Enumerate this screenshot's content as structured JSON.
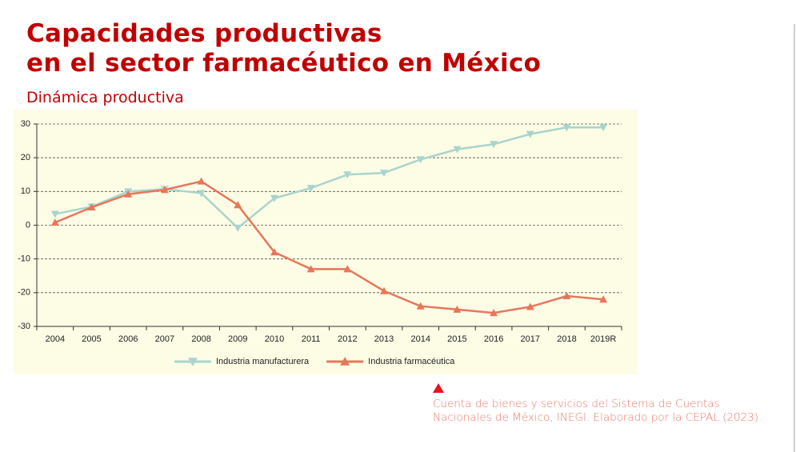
{
  "header": {
    "title": [
      "Capacidades productivas",
      "en el sector farmacéutico en México"
    ],
    "subtitle": "Dinámica productiva"
  },
  "chart_data": {
    "type": "line",
    "categories": [
      "2004",
      "2005",
      "2006",
      "2007",
      "2008",
      "2009",
      "2010",
      "2011",
      "2012",
      "2013",
      "2014",
      "2015",
      "2016",
      "2017",
      "2018",
      "2019R"
    ],
    "series": [
      {
        "name": "Industria manufacturera",
        "color": "#a9d5cd",
        "marker": "down",
        "values": [
          3.3,
          5.5,
          10,
          10.7,
          9.5,
          -0.8,
          8,
          11,
          15,
          15.5,
          19.5,
          22.5,
          24,
          27,
          29,
          29
        ]
      },
      {
        "name": "Industria farmacéutica",
        "color": "#e8765a",
        "marker": "up",
        "values": [
          0.8,
          5.3,
          9.2,
          10.5,
          13,
          6,
          -8,
          -13,
          -13,
          -19.5,
          -24,
          -25,
          -26,
          -24.2,
          -21,
          -22
        ]
      }
    ],
    "ylim": [
      -30,
      30
    ],
    "yticks": [
      -30,
      -20,
      -10,
      0,
      10,
      20,
      30
    ],
    "grid": true,
    "legend": "bottom"
  },
  "source": [
    "Cuenta de bienes y servicios del Sistema de Cuentas",
    "Nacionales de México, INEGI. Elaborado por la CEPAL (2023)."
  ]
}
